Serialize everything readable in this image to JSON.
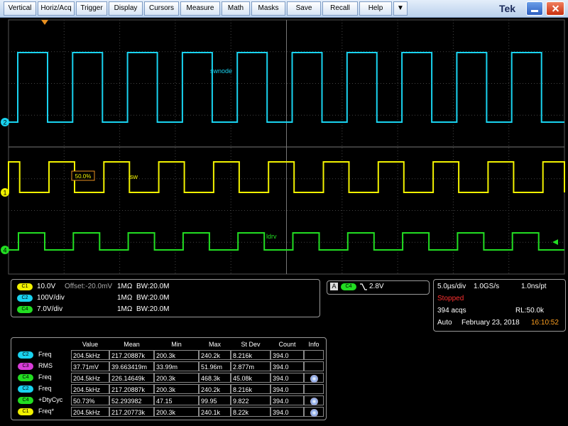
{
  "menu": [
    "Vertical",
    "Horiz/Acq",
    "Trigger",
    "Display",
    "Cursors",
    "Measure",
    "Math",
    "Masks",
    "Save",
    "Recall",
    "Help",
    "▼"
  ],
  "brand": "Tek",
  "channel_colors": {
    "C1": "#f2f200",
    "C2": "#19d3f0",
    "C3": "#d83cd8",
    "C4": "#22dd22"
  },
  "waveforms": [
    {
      "channel": "C2",
      "marker": "2",
      "label": "swnode"
    },
    {
      "channel": "C1",
      "marker": "1",
      "label": "sw",
      "cursor_label": "50.0%"
    },
    {
      "channel": "C4",
      "marker": "4",
      "label": "ldrv"
    }
  ],
  "channels": [
    {
      "badge": "C1",
      "scale": "10.0V",
      "offset": "Offset:-20.0mV",
      "coupling": "1MΩ",
      "bw": "BW:20.0M"
    },
    {
      "badge": "C2",
      "scale": "100V/div",
      "coupling": "1MΩ",
      "bw": "BW:20.0M"
    },
    {
      "badge": "C4",
      "scale": "7.0V/div",
      "coupling": "1MΩ",
      "bw": "BW:20.0M"
    }
  ],
  "trigger": {
    "mode": "A",
    "source": "C4",
    "level": "2.8V"
  },
  "acquisition": {
    "time_div": "5.0µs/div",
    "sample_rate": "1.0GS/s",
    "resolution": "1.0ns/pt",
    "state": "Stopped",
    "acqs": "394 acqs",
    "record_length": "RL:50.0k",
    "trigger_mode": "Auto",
    "date": "February 23, 2018",
    "time": "16:10:52"
  },
  "measurements": {
    "header": [
      "Value",
      "Mean",
      "Min",
      "Max",
      "St Dev",
      "Count",
      "Info"
    ],
    "rows": [
      {
        "badge": "C2",
        "name": "Freq",
        "cells": [
          "204.5kHz",
          "217.20887k",
          "200.3k",
          "240.2k",
          "8.216k",
          "394.0"
        ],
        "info": false
      },
      {
        "badge": "C3",
        "name": "RMS",
        "cells": [
          "37.71mV",
          "39.663419m",
          "33.99m",
          "51.96m",
          "2.877m",
          "394.0"
        ],
        "info": false
      },
      {
        "badge": "C4",
        "name": "Freq",
        "cells": [
          "204.5kHz",
          "226.14649k",
          "200.3k",
          "468.3k",
          "45.08k",
          "394.0"
        ],
        "info": true
      },
      {
        "badge": "C2",
        "name": "Freq",
        "cells": [
          "204.5kHz",
          "217.20887k",
          "200.3k",
          "240.2k",
          "8.216k",
          "394.0"
        ],
        "info": false
      },
      {
        "badge": "C4",
        "name": "+DtyCyc",
        "cells": [
          "50.73%",
          "52.293982",
          "47.15",
          "99.95",
          "9.822",
          "394.0"
        ],
        "info": true
      },
      {
        "badge": "C1",
        "name": "Freq*",
        "cells": [
          "204.5kHz",
          "217.20773k",
          "200.3k",
          "240.1k",
          "8.22k",
          "394.0"
        ],
        "info": true
      }
    ]
  }
}
